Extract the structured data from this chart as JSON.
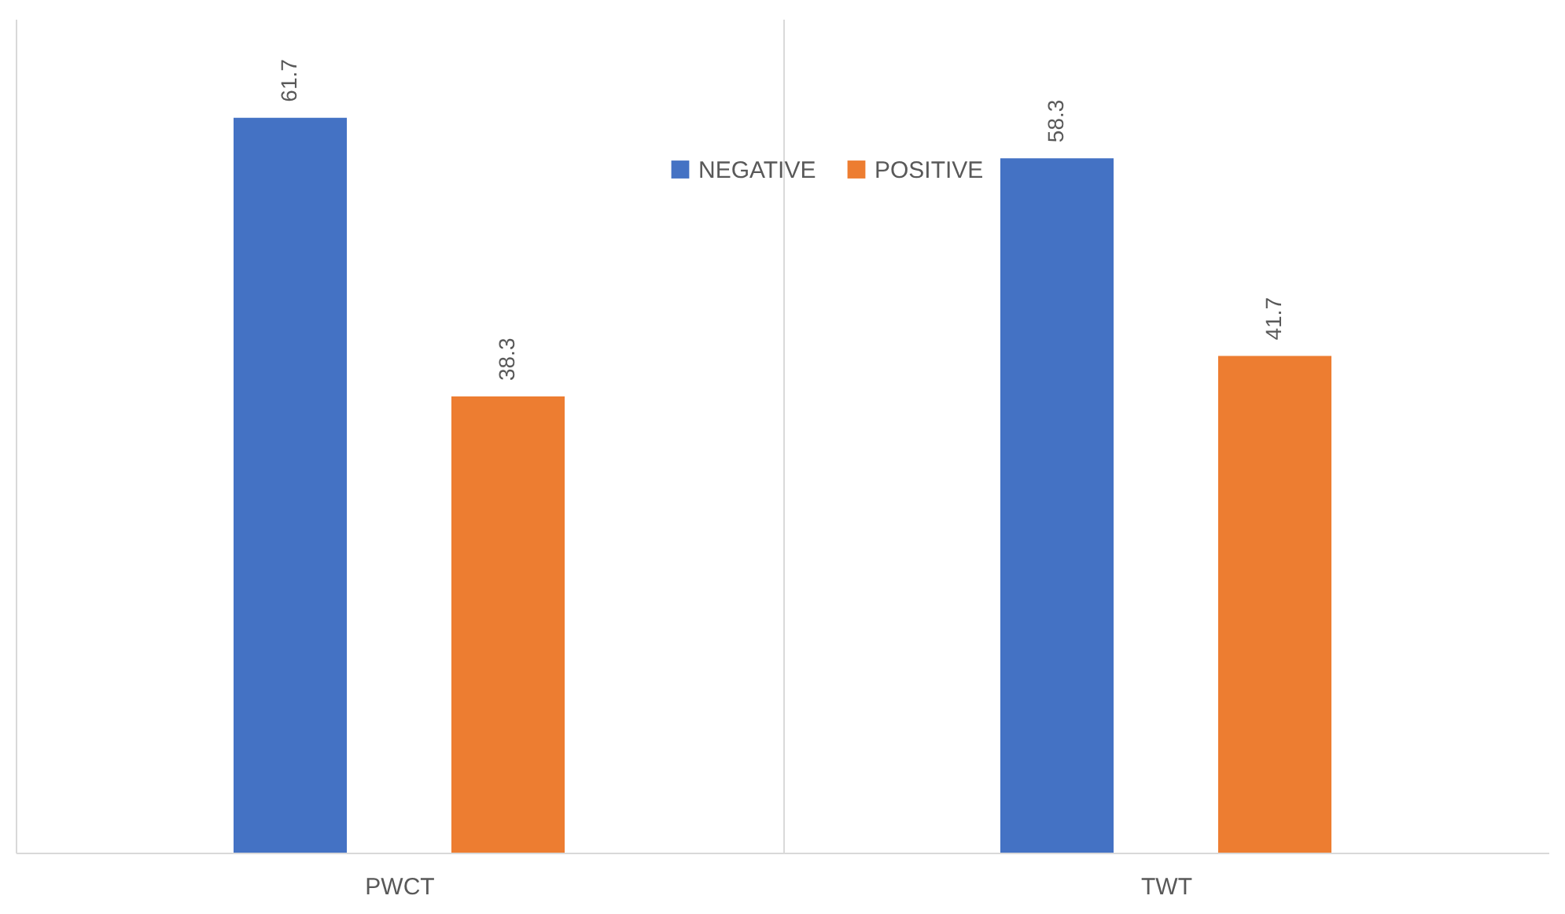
{
  "chart_data": {
    "type": "bar",
    "categories": [
      "PWCT",
      "TWT"
    ],
    "series": [
      {
        "name": "NEGATIVE",
        "color": "#4472c4",
        "values": [
          61.7,
          58.3
        ]
      },
      {
        "name": "POSITIVE",
        "color": "#ed7d31",
        "values": [
          38.3,
          41.7
        ]
      }
    ],
    "ylim": [
      0,
      70
    ],
    "data_labels": true,
    "grid": "x",
    "legend": "top"
  }
}
